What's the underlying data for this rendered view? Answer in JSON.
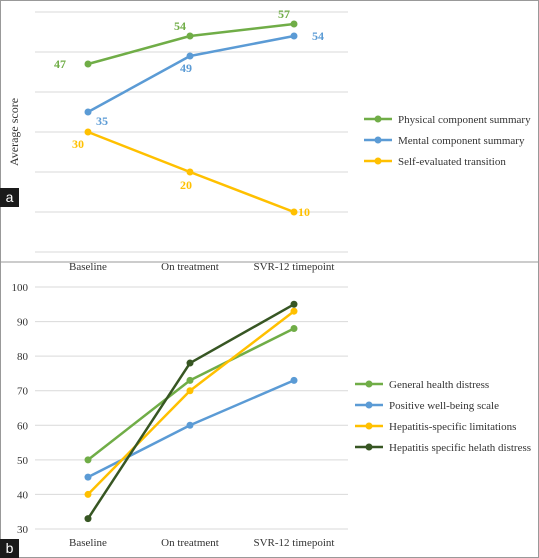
{
  "chart_data": [
    {
      "type": "line",
      "panel_label": "a",
      "categories": [
        "Baseline",
        "On treatment",
        "SVR-12 timepoint"
      ],
      "ylabel": "Average score",
      "ylim": [
        0,
        60
      ],
      "yticks_shown": false,
      "grid": true,
      "legend_position": "right",
      "series": [
        {
          "name": "Physical component summary",
          "color": "#70ad47",
          "values": [
            47,
            54,
            57
          ],
          "data_labels": [
            "47",
            "54",
            "57"
          ]
        },
        {
          "name": "Mental component summary",
          "color": "#5b9bd5",
          "values": [
            35,
            49,
            54
          ],
          "data_labels": [
            "35",
            "49",
            "54"
          ]
        },
        {
          "name": "Self-evaluated transition",
          "color": "#ffc000",
          "values": [
            30,
            20,
            10
          ],
          "data_labels": [
            "30",
            "20",
            "10"
          ]
        }
      ]
    },
    {
      "type": "line",
      "panel_label": "b",
      "categories": [
        "Baseline",
        "On treatment",
        "SVR-12 timepoint"
      ],
      "ylim": [
        30,
        100
      ],
      "yticks": [
        "30",
        "40",
        "50",
        "60",
        "70",
        "80",
        "90",
        "100"
      ],
      "grid": true,
      "legend_position": "right",
      "series": [
        {
          "name": "General health distress",
          "color": "#70ad47",
          "values": [
            50,
            73,
            88
          ]
        },
        {
          "name": "Positive well-being scale",
          "color": "#5b9bd5",
          "values": [
            45,
            60,
            73
          ]
        },
        {
          "name": "Hepatitis-specific limitations",
          "color": "#ffc000",
          "values": [
            40,
            70,
            93
          ]
        },
        {
          "name": "Hepatitis specific helath distress",
          "color": "#375623",
          "values": [
            33,
            78,
            95
          ]
        }
      ]
    }
  ]
}
